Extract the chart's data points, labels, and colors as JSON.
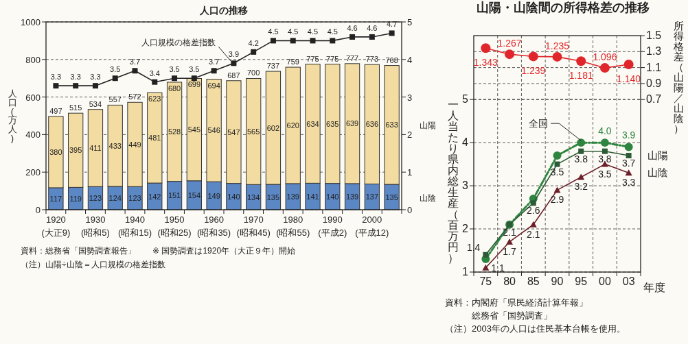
{
  "chart_data": [
    {
      "type": "bar",
      "title": "人口の推移",
      "ylabel": "人口(万人)",
      "stacked": true,
      "data_labels": true,
      "grid": "y",
      "categories": [
        "1920\n(大正9)",
        null,
        "1930\n(昭和5)",
        null,
        "1940\n(昭和15)",
        null,
        "1950\n(昭和25)",
        null,
        "1960\n(昭和35)",
        null,
        "1970\n(昭和45)",
        null,
        "1980\n(昭和55)",
        null,
        "1990\n(平成2)",
        null,
        "2000\n(平成12)",
        null
      ],
      "series": [
        {
          "name": "山陰",
          "color": "#5b87c4",
          "values": [
            117,
            119,
            123,
            124,
            123,
            142,
            151,
            154,
            149,
            140,
            134,
            135,
            139,
            141,
            140,
            139,
            137,
            135
          ]
        },
        {
          "name": "山陽",
          "color": "#f3dca2",
          "values": [
            380,
            395,
            411,
            433,
            449,
            481,
            528,
            545,
            546,
            547,
            565,
            602,
            620,
            634,
            635,
            639,
            636,
            633
          ]
        },
        {
          "name": "人口規模の格差指数",
          "type": "line",
          "axis": "y2",
          "color": "#222222",
          "marker": "square",
          "values": [
            3.3,
            3.3,
            3.3,
            3.5,
            3.7,
            3.4,
            3.5,
            3.5,
            3.7,
            3.9,
            4.2,
            4.5,
            4.5,
            4.5,
            4.5,
            4.6,
            4.6,
            4.7
          ]
        }
      ],
      "totals": [
        "497",
        "515",
        "534",
        "557",
        "572",
        "623",
        "680",
        "699",
        "694",
        "687",
        "700",
        "737",
        "759",
        "775",
        "775",
        "777",
        "773",
        "768"
      ],
      "ylim": [
        0,
        1000
      ],
      "yticks": [
        0,
        200,
        400,
        600,
        800,
        1000
      ],
      "y2lim": [
        0,
        5
      ],
      "y2ticks": [
        0,
        1,
        2,
        3,
        4,
        5
      ],
      "annotations": [
        "資料：総務省「国勢調査報告」　　※ 国勢調査は1920年（大正９年）開始",
        "（注）山陽÷山陰＝人口規模の格差指数"
      ]
    },
    {
      "type": "line",
      "title": "山陽・山陰間の所得格差の推移",
      "ylabel": "一人当たり県内総生産（百万円）",
      "y2label": "所得格差（山陽／山陰）",
      "xlabel": "年度",
      "grid": true,
      "categories": [
        "75",
        "80",
        "85",
        "90",
        "95",
        "00",
        "03"
      ],
      "series": [
        {
          "name": "全国",
          "color": "#2e8540",
          "marker": "circle",
          "line_style": "dashed",
          "values": [
            1.3,
            2.1,
            2.7,
            3.7,
            4.0,
            4.0,
            3.9
          ],
          "value_labels": [
            null,
            null,
            null,
            null,
            null,
            "4.0",
            "3.9"
          ]
        },
        {
          "name": "山陽",
          "color": "#2d5b37",
          "marker": "square",
          "values": [
            1.4,
            2.1,
            2.6,
            3.5,
            3.8,
            3.8,
            3.7
          ],
          "value_labels": [
            "1.4",
            "2.1",
            "2.6",
            "3.5",
            "3.8",
            "3.8",
            "3.7"
          ]
        },
        {
          "name": "山陰",
          "color": "#6b1f2b",
          "marker": "triangle",
          "values": [
            1.1,
            1.7,
            2.1,
            2.9,
            3.2,
            3.5,
            3.3
          ],
          "value_labels": [
            "1.1",
            "1.7",
            "2.1",
            "2.9",
            "3.2",
            "3.5",
            "3.3"
          ]
        },
        {
          "color": "#e0262b",
          "marker": "circle",
          "axis": "y2",
          "values": [
            1.343,
            1.267,
            1.239,
            1.235,
            1.181,
            1.096,
            1.14
          ],
          "value_labels": [
            "1.343",
            "1.267",
            "1.239",
            "1.235",
            "1.181",
            "1.096",
            "1.140"
          ]
        }
      ],
      "ylim": [
        1,
        6.48
      ],
      "yticks": [
        1,
        2,
        3,
        4,
        5
      ],
      "y2lim": [
        -1.46,
        1.5
      ],
      "y2ticks": [
        {
          "value": 0.7,
          "label": "0.7"
        },
        {
          "value": 0.9,
          "label": "0.9"
        },
        {
          "value": 1.1,
          "label": "1.1"
        },
        {
          "value": 1.3,
          "label": "1.3"
        },
        {
          "value": 1.5,
          "label": "1.5"
        }
      ],
      "annotations": [
        "資料：内閣府「県民経済計算年報」",
        "　　　総務省「国勢調査」",
        "（注）2003年の人口は住民基本台帳を使用。"
      ]
    }
  ]
}
